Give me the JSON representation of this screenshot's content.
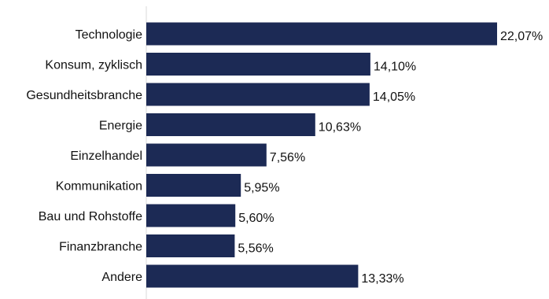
{
  "chart_data": {
    "type": "bar",
    "orientation": "horizontal",
    "categories": [
      "Technologie",
      "Konsum, zyklisch",
      "Gesundheitsbranche",
      "Energie",
      "Einzelhandel",
      "Kommunikation",
      "Bau und Rohstoffe",
      "Finanzbranche",
      "Andere"
    ],
    "values": [
      22.07,
      14.1,
      14.05,
      10.63,
      7.56,
      5.95,
      5.6,
      5.56,
      13.33
    ],
    "value_labels": [
      "22,07%",
      "14,10%",
      "14,05%",
      "10,63%",
      "7,56%",
      "5,95%",
      "5,60%",
      "5,56%",
      "13,33%"
    ],
    "title": "",
    "xlabel": "",
    "ylabel": "",
    "xlim": [
      0,
      22.07
    ],
    "grid": false,
    "legend": "none",
    "colors": {
      "bar": "#1c2a55",
      "axis": "#d9d9d9",
      "text": "#111111"
    }
  }
}
